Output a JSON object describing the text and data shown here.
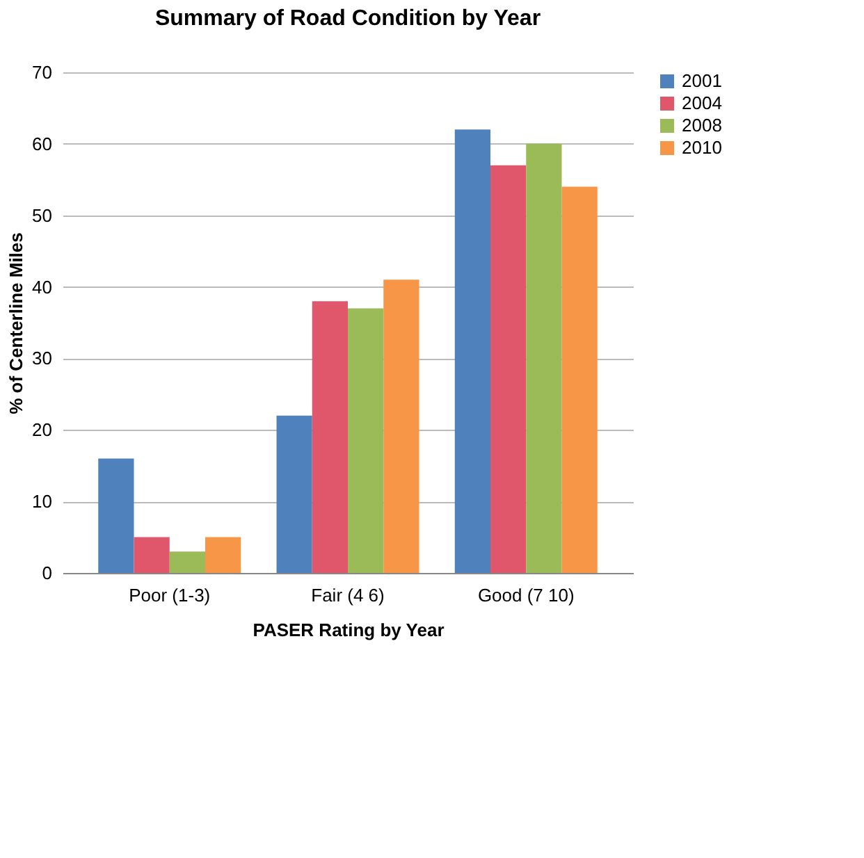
{
  "chart_data": {
    "type": "bar",
    "title": "Summary of Road Condition by Year",
    "xlabel": "PASER Rating by Year",
    "ylabel": "% of Centerline Miles",
    "categories": [
      "Poor (1-3)",
      "Fair (4 6)",
      "Good (7 10)"
    ],
    "series": [
      {
        "name": "2001",
        "color": "#4f81bd",
        "values": [
          16,
          22,
          62
        ]
      },
      {
        "name": "2004",
        "color": "#e0566b",
        "values": [
          5,
          38,
          57
        ]
      },
      {
        "name": "2008",
        "color": "#9bbb59",
        "values": [
          3,
          37,
          60
        ]
      },
      {
        "name": "2010",
        "color": "#f79646",
        "values": [
          5,
          41,
          54
        ]
      }
    ],
    "ylim": [
      0,
      70
    ],
    "yticks": [
      0,
      10,
      20,
      30,
      40,
      50,
      60,
      70
    ],
    "grid": "y",
    "legend": "right"
  }
}
